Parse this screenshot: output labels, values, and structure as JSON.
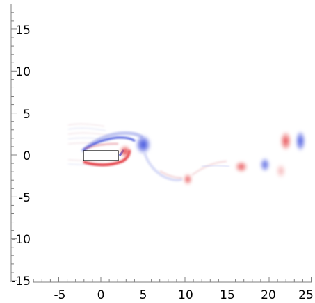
{
  "plot": {
    "x_tick_labels": [
      "-5",
      "0",
      "5",
      "10",
      "15",
      "20",
      "25"
    ],
    "y_tick_labels": [
      "15",
      "10",
      "5",
      "0",
      "-5",
      "-10",
      "-15"
    ],
    "colors": {
      "positive_vorticity": "#e0202a",
      "negative_vorticity": "#2a3ed8",
      "body_fill": "#ffffff",
      "body_stroke": "#000000",
      "axis": "#7f7f7f"
    }
  }
}
